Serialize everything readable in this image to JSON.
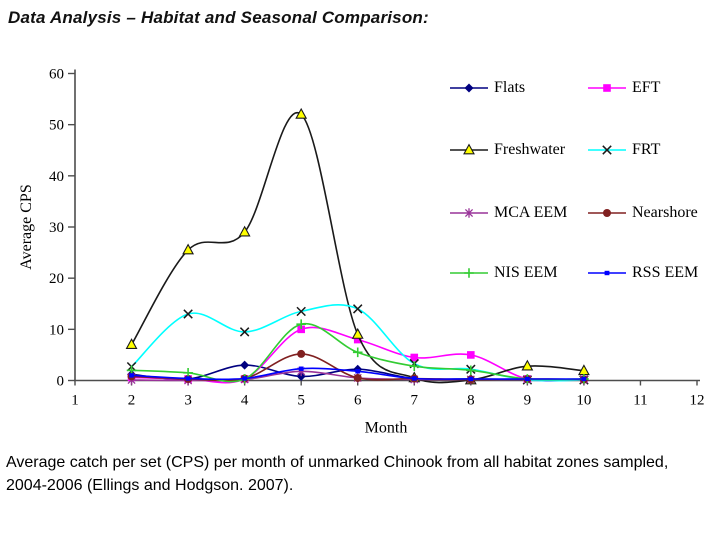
{
  "title": "Data Analysis – Habitat and Seasonal Comparison:",
  "caption": {
    "line1": "Average catch per set (CPS) per month of unmarked Chinook from all habitat zones sampled,",
    "line2": "2004-2006 (Ellings and Hodgson. 2007)."
  },
  "colors": {
    "axis": "#4d4d4d",
    "text": "#000000",
    "background": "#ffffff"
  },
  "chart_data": {
    "type": "line",
    "title": "",
    "xlabel": "Month",
    "ylabel": "Average CPS",
    "xlim": [
      1,
      12
    ],
    "ylim": [
      0,
      60
    ],
    "x_ticks": [
      1,
      2,
      3,
      4,
      5,
      6,
      7,
      8,
      9,
      10,
      11,
      12
    ],
    "y_ticks": [
      0,
      10,
      20,
      30,
      40,
      50,
      60
    ],
    "grid": false,
    "smoothed": true,
    "legend_position": "upper-right, two columns, no border",
    "x": [
      2,
      3,
      4,
      5,
      6,
      7,
      8,
      9,
      10
    ],
    "series": [
      {
        "name": "Flats",
        "color": "#000080",
        "marker": "diamond",
        "marker_color": "#000080",
        "values": [
          1.2,
          0.3,
          3.0,
          0.8,
          2.2,
          0.4,
          0.3,
          0.2,
          0.2
        ]
      },
      {
        "name": "EFT",
        "color": "#FF00FF",
        "marker": "square",
        "marker_color": "#FF00FF",
        "values": [
          0.6,
          0.3,
          0.3,
          10.0,
          8.0,
          4.5,
          5.0,
          0.3,
          0.2
        ]
      },
      {
        "name": "Freshwater",
        "color": "#1A1A1A",
        "marker": "triangle",
        "marker_color": "#FFFF00",
        "values": [
          7.0,
          25.5,
          29.0,
          52.0,
          9.0,
          0.5,
          0.1,
          2.8,
          1.9
        ]
      },
      {
        "name": "FRT",
        "color": "#00FFFF",
        "marker": "x",
        "marker_color": "#1A1A1A",
        "values": [
          2.7,
          13.0,
          9.5,
          13.5,
          14.0,
          3.3,
          2.2,
          0.1,
          0.1
        ]
      },
      {
        "name": "MCA EEM",
        "color": "#993399",
        "marker": "asterisk",
        "marker_color": "#993399",
        "values": [
          0.1,
          0.0,
          0.2,
          1.8,
          0.5,
          0.2,
          0.2,
          0.2,
          0.2
        ]
      },
      {
        "name": "Nearshore",
        "color": "#802020",
        "marker": "circle",
        "marker_color": "#802020",
        "values": [
          0.8,
          0.3,
          0.4,
          5.2,
          0.5,
          0.4,
          0.2,
          0.3,
          0.2
        ]
      },
      {
        "name": "NIS EEM",
        "color": "#33CC33",
        "marker": "plus",
        "marker_color": "#33CC33",
        "values": [
          2.0,
          1.5,
          0.3,
          11.0,
          5.5,
          2.8,
          2.0,
          0.3,
          0.3
        ]
      },
      {
        "name": "RSS EEM",
        "color": "#0000FF",
        "marker": "dot",
        "marker_color": "#0000FF",
        "values": [
          1.0,
          0.4,
          0.4,
          2.3,
          1.8,
          0.4,
          0.3,
          0.3,
          0.3
        ]
      }
    ]
  }
}
